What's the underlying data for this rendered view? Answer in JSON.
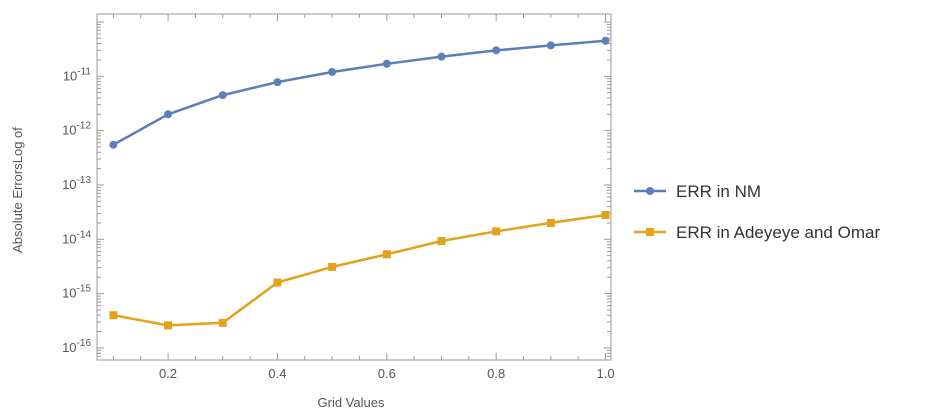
{
  "chart_data": {
    "type": "line",
    "title": "",
    "xlabel": "Grid Values",
    "ylabel": "Absolute ErrorsLog of",
    "xlim": [
      0.07,
      1.01
    ],
    "ylim": [
      6e-17,
      1.4e-10
    ],
    "yscale": "log",
    "x_ticks": [
      0.2,
      0.4,
      0.6,
      0.8,
      1.0
    ],
    "x_tick_labels": [
      "0.2",
      "0.4",
      "0.6",
      "0.8",
      "1.0"
    ],
    "y_ticks": [
      {
        "base": "10",
        "exp": "-16",
        "value": 1e-16
      },
      {
        "base": "10",
        "exp": "-15",
        "value": 1e-15
      },
      {
        "base": "10",
        "exp": "-14",
        "value": 1e-14
      },
      {
        "base": "10",
        "exp": "-13",
        "value": 1e-13
      },
      {
        "base": "10",
        "exp": "-12",
        "value": 1e-12
      },
      {
        "base": "10",
        "exp": "-11",
        "value": 1e-11
      }
    ],
    "grid": false,
    "legend_position": "right",
    "x": [
      0.1,
      0.2,
      0.3,
      0.4,
      0.5,
      0.6,
      0.7,
      0.8,
      0.9,
      1.0
    ],
    "series": [
      {
        "name": "ERR in NM",
        "color": "#5b7fb9",
        "marker": "circle",
        "values": [
          5.5e-13,
          2e-12,
          4.5e-12,
          7.8e-12,
          1.2e-11,
          1.7e-11,
          2.3e-11,
          3e-11,
          3.7e-11,
          4.5e-11
        ]
      },
      {
        "name": "ERR in Adeyeye and Omar",
        "color": "#e3a21a",
        "marker": "square",
        "values": [
          4e-16,
          2.6e-16,
          2.9e-16,
          1.6e-15,
          3.1e-15,
          5.3e-15,
          9.3e-15,
          1.4e-14,
          2e-14,
          2.8e-14
        ]
      }
    ]
  }
}
